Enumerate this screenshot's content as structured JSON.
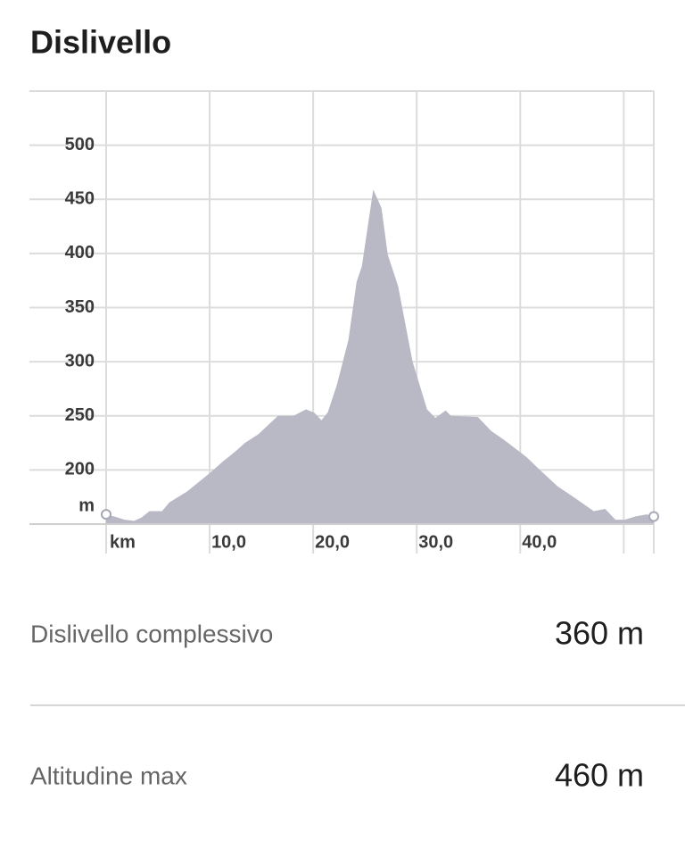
{
  "header": {
    "title": "Dislivello"
  },
  "chart_data": {
    "type": "area",
    "x_label": "km",
    "y_label": "m",
    "color": "#b9b9c6",
    "x": [
      0,
      0.8,
      1.8,
      2.7,
      3.4,
      4.2,
      5.4,
      6.1,
      7.8,
      10,
      11.3,
      12.6,
      13.4,
      14.7,
      15.6,
      16.6,
      18.1,
      19.3,
      20.1,
      20.8,
      21.4,
      22.3,
      23.4,
      24.2,
      24.7,
      25.8,
      26.6,
      27.2,
      28.2,
      29.6,
      31,
      31.8,
      32.8,
      33.3,
      35.9,
      37.2,
      38.4,
      40.6,
      41.9,
      43.6,
      45.3,
      47.1,
      48.2,
      49.2,
      50.1,
      51.1,
      52.2,
      52.9
    ],
    "values": [
      159,
      157,
      154,
      153,
      156,
      162,
      162,
      170,
      180,
      197,
      208,
      218,
      225,
      233,
      241,
      250,
      250,
      256,
      253,
      246,
      253,
      279,
      320,
      374,
      388,
      459,
      442,
      399,
      370,
      300,
      256,
      248,
      255,
      250,
      249,
      236,
      228,
      212,
      200,
      185,
      174,
      162,
      164,
      154,
      154,
      157,
      159,
      157
    ],
    "xlim": [
      0,
      52.9
    ],
    "ylim": [
      150,
      550
    ],
    "xticks": [
      {
        "value": 10,
        "label": "10,0"
      },
      {
        "value": 20,
        "label": "20,0"
      },
      {
        "value": 30,
        "label": "30,0"
      },
      {
        "value": 40,
        "label": "40,0"
      },
      {
        "value": 50,
        "label": null
      }
    ],
    "yticks": [
      200,
      250,
      300,
      350,
      400,
      450,
      500
    ],
    "grid": true
  },
  "stats": [
    {
      "label": "Dislivello complessivo",
      "value": "360 m"
    },
    {
      "label": "Altitudine max",
      "value": "460 m"
    }
  ]
}
